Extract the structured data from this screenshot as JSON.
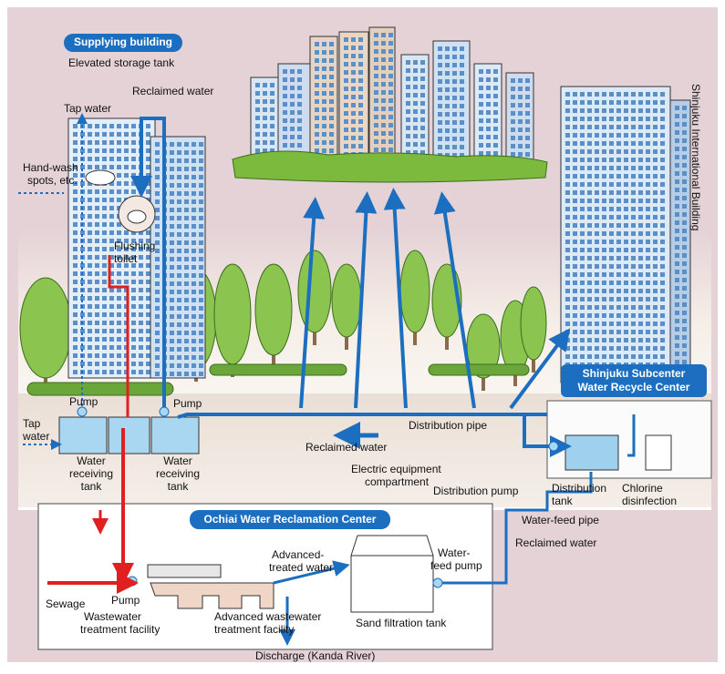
{
  "supplying_building": "Supplying building",
  "elevated_storage_tank": "Elevated storage tank",
  "reclaimed_water_top": "Reclaimed water",
  "tap_water_top": "Tap water",
  "hand_wash": [
    "Hand-wash",
    "spots, etc."
  ],
  "flushing_toilet": [
    "Flushing",
    "toilet"
  ],
  "international_building": "Shinjuku International Building",
  "tap_water_left": [
    "Tap",
    "water"
  ],
  "pump_left": "Pump",
  "pump_right": "Pump",
  "receiving_tank_left": [
    "Water",
    "receiving",
    "tank"
  ],
  "receiving_tank_right": [
    "Water",
    "receiving",
    "tank"
  ],
  "reclaimed_water_middle": "Reclaimed water",
  "distribution_pipe": "Distribution pipe",
  "recycle_center": [
    "Shinjuku Subcenter",
    "Water Recycle Center"
  ],
  "electric_compartment": [
    "Electric equipment",
    "compartment"
  ],
  "distribution_pump": "Distribution pump",
  "distribution_tank": [
    "Distribution",
    "tank"
  ],
  "chlorine": [
    "Chlorine",
    "disinfection"
  ],
  "ochiai_center": "Ochiai Water Reclamation Center",
  "water_feed_pipe": "Water-feed pipe",
  "reclaimed_water_bottom": "Reclaimed water",
  "advanced_treated_water": [
    "Advanced-",
    "treated water"
  ],
  "water_feed_pump": [
    "Water-",
    "feed pump"
  ],
  "sewage": "Sewage",
  "pump_bottom": "Pump",
  "wastewater_facility": [
    "Wastewater",
    "treatment facility"
  ],
  "advanced_facility": [
    "Advanced wastewater",
    "treatment facility"
  ],
  "sand_filtration_tank": "Sand filtration tank",
  "discharge": "Discharge (Kanda River)"
}
